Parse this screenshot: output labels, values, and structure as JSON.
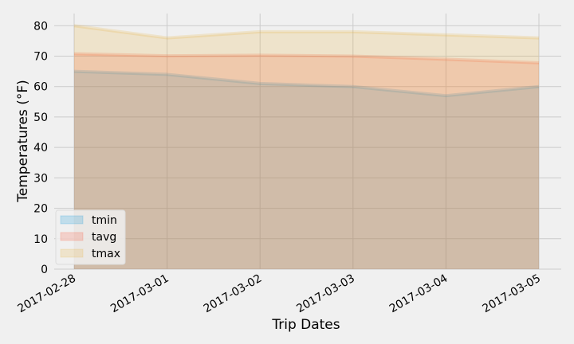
{
  "chart_data": {
    "type": "area",
    "x": [
      "2017-02-28",
      "2017-03-01",
      "2017-03-02",
      "2017-03-03",
      "2017-03-04",
      "2017-03-05"
    ],
    "series": [
      {
        "name": "tmin",
        "values": [
          65,
          64,
          61,
          60,
          57,
          60
        ],
        "color": "#008fd5"
      },
      {
        "name": "tavg",
        "values": [
          70.8,
          70.1,
          70.3,
          70.0,
          69.0,
          67.8
        ],
        "color": "#fc4f30"
      },
      {
        "name": "tmax",
        "values": [
          80,
          76,
          78,
          78,
          77,
          76
        ],
        "color": "#e5ae38"
      }
    ],
    "xlabel": "Trip Dates",
    "ylabel": "Temperatures (°F)",
    "ylim": [
      0,
      84
    ],
    "yticks": [
      0,
      10,
      20,
      30,
      40,
      50,
      60,
      70,
      80
    ],
    "grid": true,
    "legend_position": "lower-left",
    "fill_alpha": 0.2
  }
}
